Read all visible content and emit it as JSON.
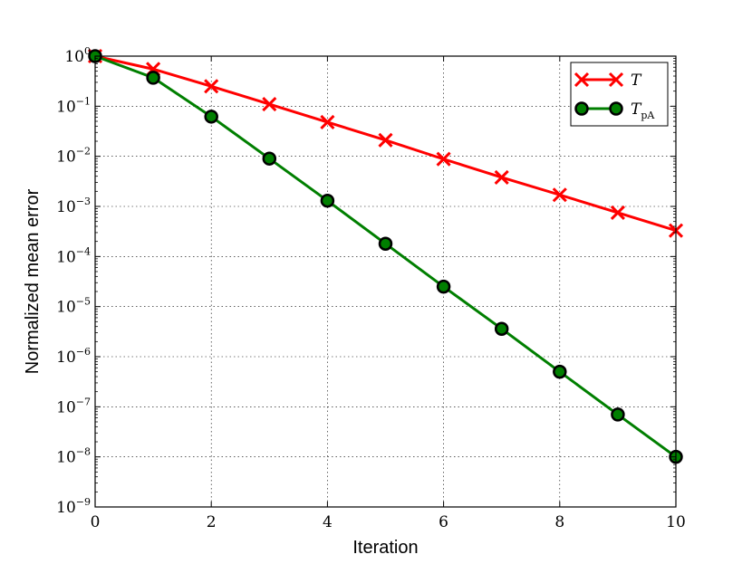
{
  "chart_data": {
    "type": "line",
    "xlabel": "Iteration",
    "ylabel": "Normalized mean error",
    "xlim": [
      0,
      10
    ],
    "ylim": [
      1e-09,
      1
    ],
    "yscale": "log",
    "grid": true,
    "legend_position": "top-right",
    "x_ticks": [
      "0",
      "2",
      "4",
      "6",
      "8",
      "10"
    ],
    "y_tick_base": "10",
    "y_tick_exponents": [
      "0",
      "−1",
      "−2",
      "−3",
      "−4",
      "−5",
      "−6",
      "−7",
      "−8",
      "−9"
    ],
    "x": [
      0,
      1,
      2,
      3,
      4,
      5,
      6,
      7,
      8,
      9,
      10
    ],
    "series": [
      {
        "name": "T",
        "name_subscript": "",
        "color": "#ff0000",
        "marker": "x",
        "values": [
          1.0,
          0.55,
          0.25,
          0.11,
          0.048,
          0.021,
          0.0088,
          0.0038,
          0.0017,
          0.00075,
          0.00033
        ]
      },
      {
        "name": "T",
        "name_subscript": "pA",
        "color": "#007f00",
        "marker": "o",
        "values": [
          1.0,
          0.37,
          0.062,
          0.009,
          0.0013,
          0.00018,
          2.5e-05,
          3.6e-06,
          5e-07,
          7e-08,
          1e-08
        ]
      }
    ]
  }
}
